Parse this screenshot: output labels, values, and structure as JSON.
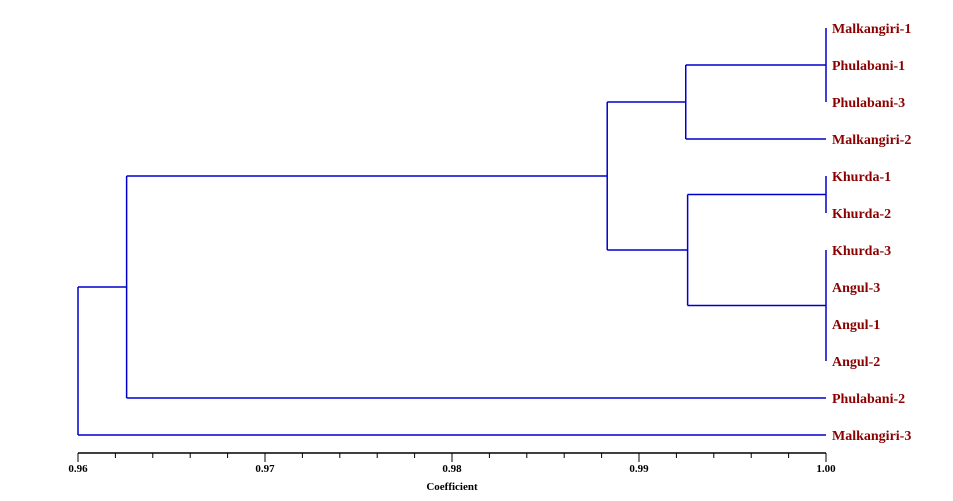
{
  "chart_data": {
    "type": "dendrogram",
    "xlabel": "Coefficient",
    "xlim": [
      0.96,
      1.0
    ],
    "ticks": [
      "0.96",
      "0.97",
      "0.98",
      "0.99",
      "1.00"
    ],
    "tick_values": [
      0.96,
      0.97,
      0.98,
      0.99,
      1.0
    ],
    "minor_tick_step": 0.002,
    "leaves": [
      "Malkangiri-1",
      "Phulabani-1",
      "Phulabani-3",
      "Malkangiri-2",
      "Khurda-1",
      "Khurda-2",
      "Khurda-3",
      "Angul-3",
      "Angul-1",
      "Angul-2",
      "Phulabani-2",
      "Malkangiri-3"
    ],
    "merges": [
      {
        "members": [
          "Malkangiri-1",
          "Phulabani-1",
          "Phulabani-3"
        ],
        "coefficient": 1.0
      },
      {
        "members": [
          "Khurda-1",
          "Khurda-2"
        ],
        "coefficient": 1.0
      },
      {
        "members": [
          "Khurda-3",
          "Angul-3",
          "Angul-1",
          "Angul-2"
        ],
        "coefficient": 1.0
      },
      {
        "members": [
          "Malkangiri-1",
          "Phulabani-1",
          "Phulabani-3",
          "Malkangiri-2"
        ],
        "coefficient": 0.9925
      },
      {
        "members": [
          "Khurda-1",
          "Khurda-2",
          "Khurda-3",
          "Angul-3",
          "Angul-1",
          "Angul-2"
        ],
        "coefficient": 0.9926
      },
      {
        "members": [
          "Malkangiri-1",
          "Phulabani-1",
          "Phulabani-3",
          "Malkangiri-2",
          "Khurda-1",
          "Khurda-2",
          "Khurda-3",
          "Angul-3",
          "Angul-1",
          "Angul-2"
        ],
        "coefficient": 0.9883
      },
      {
        "members": [
          "Malkangiri-1",
          "Phulabani-1",
          "Phulabani-3",
          "Malkangiri-2",
          "Khurda-1",
          "Khurda-2",
          "Khurda-3",
          "Angul-3",
          "Angul-1",
          "Angul-2",
          "Phulabani-2"
        ],
        "coefficient": 0.9626
      },
      {
        "members": [
          "Malkangiri-1",
          "Phulabani-1",
          "Phulabani-3",
          "Malkangiri-2",
          "Khurda-1",
          "Khurda-2",
          "Khurda-3",
          "Angul-3",
          "Angul-1",
          "Angul-2",
          "Phulabani-2",
          "Malkangiri-3"
        ],
        "coefficient": 0.96
      }
    ],
    "line_color": "#0000cc",
    "label_color": "#8b0000",
    "axis_color": "#000000"
  }
}
